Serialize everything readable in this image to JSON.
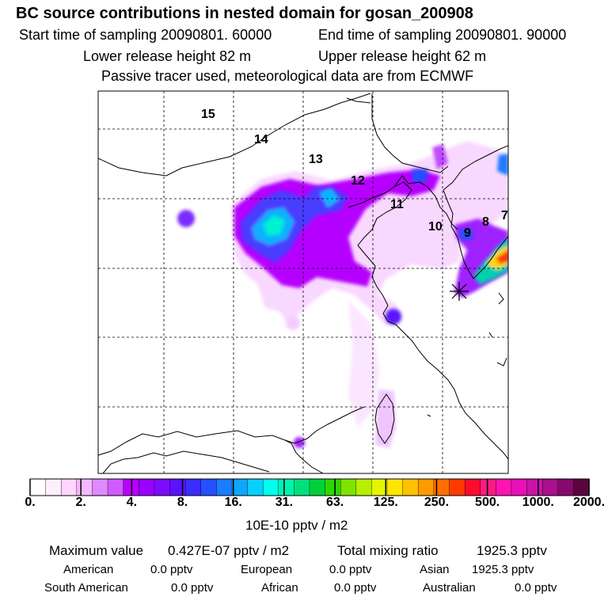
{
  "header": {
    "title": "BC  source contributions in nested domain for gosan_200908",
    "start_sampling": "Start time of sampling 20090801. 60000",
    "end_sampling": "End time of sampling 20090801. 90000",
    "lower_release": "Lower release height   82 m",
    "upper_release": "Upper release height   62 m",
    "tracer_note": "Passive tracer used, meteorological data are from ECMWF"
  },
  "map": {
    "grid_labels": [
      "15",
      "14",
      "13",
      "12",
      "11",
      "10",
      "9",
      "8",
      "7"
    ]
  },
  "colorbar": {
    "colors": [
      "#ffffff",
      "#ffeefe",
      "#ffd6ff",
      "#f4b8ff",
      "#e08aff",
      "#cf5cff",
      "#b800ff",
      "#9a00ff",
      "#7d0cff",
      "#5a12ff",
      "#3a2cff",
      "#2450ff",
      "#1a7cff",
      "#10a6ff",
      "#06d0ff",
      "#00ffee",
      "#00f2b0",
      "#00e07a",
      "#00d03a",
      "#30d600",
      "#7ee400",
      "#b8ee00",
      "#e6f400",
      "#ffe600",
      "#ffc000",
      "#ff9a00",
      "#ff6e00",
      "#ff3a00",
      "#ff0a30",
      "#ff1a82",
      "#ff14b0",
      "#e810b6",
      "#c814a8",
      "#a8108e",
      "#88086e",
      "#5a0440"
    ],
    "tick_labels": [
      "0.",
      "2.",
      "4.",
      "8.",
      "16.",
      "31.",
      "63.",
      "125.",
      "250.",
      "500.",
      "1000.",
      "2000."
    ],
    "units": "10E-10 pptv / m2"
  },
  "summary": {
    "max_label": "Maximum value",
    "max_value": "0.427E-07 pptv / m2",
    "total_label": "Total mixing ratio",
    "total_value": "1925.3 pptv",
    "regions": [
      {
        "name": "American",
        "value": "0.0 pptv"
      },
      {
        "name": "European",
        "value": "0.0 pptv"
      },
      {
        "name": "Asian",
        "value": "1925.3 pptv"
      },
      {
        "name": "South American",
        "value": "0.0 pptv"
      },
      {
        "name": "African",
        "value": "0.0 pptv"
      },
      {
        "name": "Australian",
        "value": "0.0 pptv"
      }
    ]
  }
}
